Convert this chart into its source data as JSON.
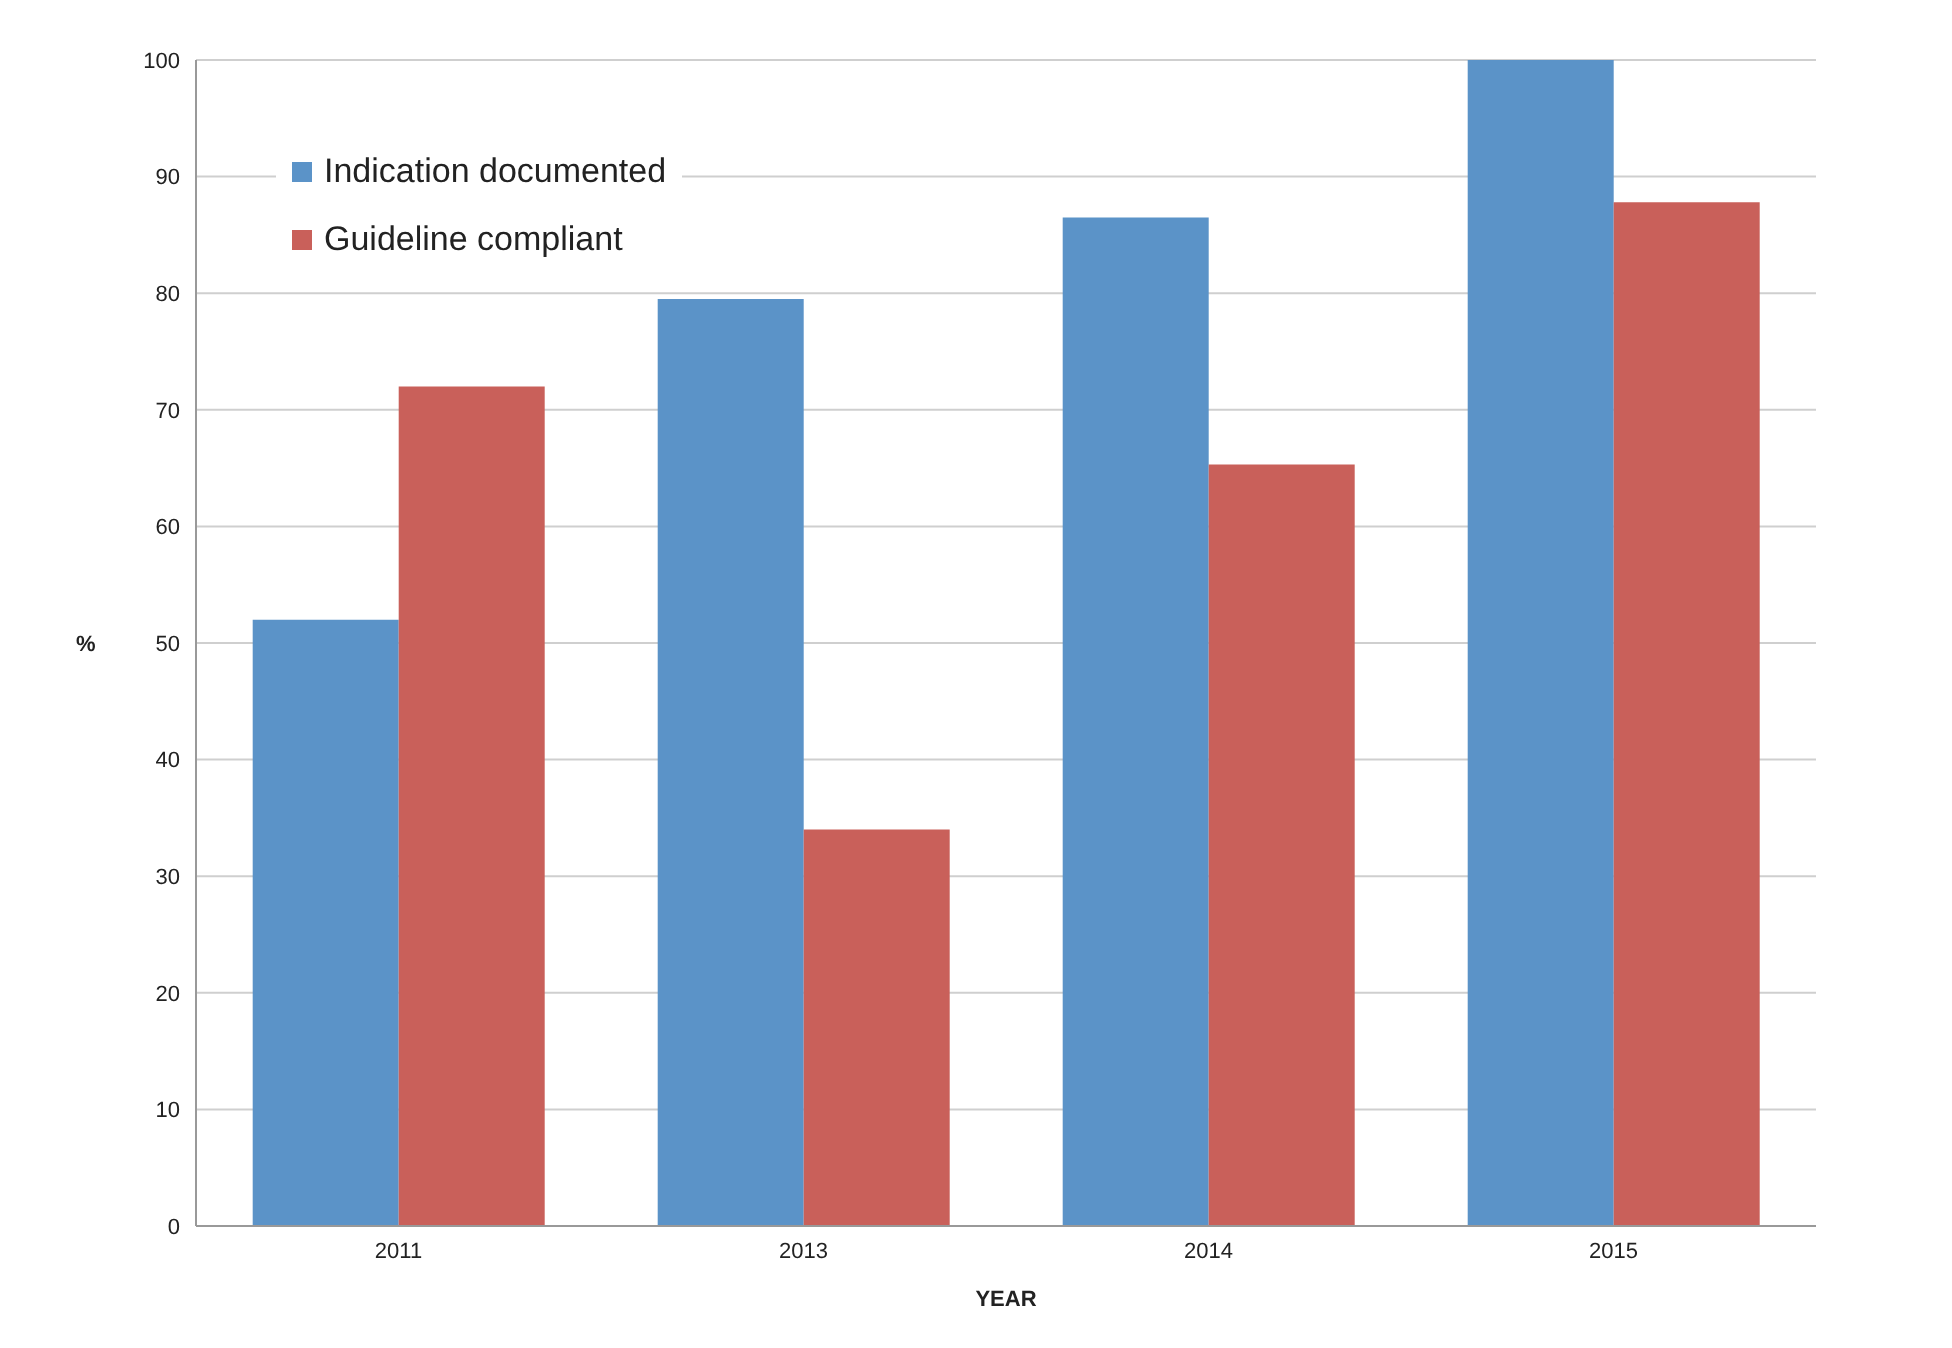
{
  "chart_data": {
    "type": "bar",
    "xlabel": "YEAR",
    "ylabel": "%",
    "categories": [
      "2011",
      "2013",
      "2014",
      "2015"
    ],
    "series": [
      {
        "name": "Indication documented",
        "color": "#5b93c8",
        "values": [
          52,
          79.5,
          86.5,
          100
        ]
      },
      {
        "name": "Guideline compliant",
        "color": "#c9605a",
        "values": [
          72,
          34,
          65.3,
          87.8
        ]
      }
    ],
    "ylim": [
      0,
      100
    ],
    "yticks": [
      0,
      10,
      20,
      30,
      40,
      50,
      60,
      70,
      80,
      90,
      100
    ],
    "grid": "y",
    "legend": "top left"
  }
}
